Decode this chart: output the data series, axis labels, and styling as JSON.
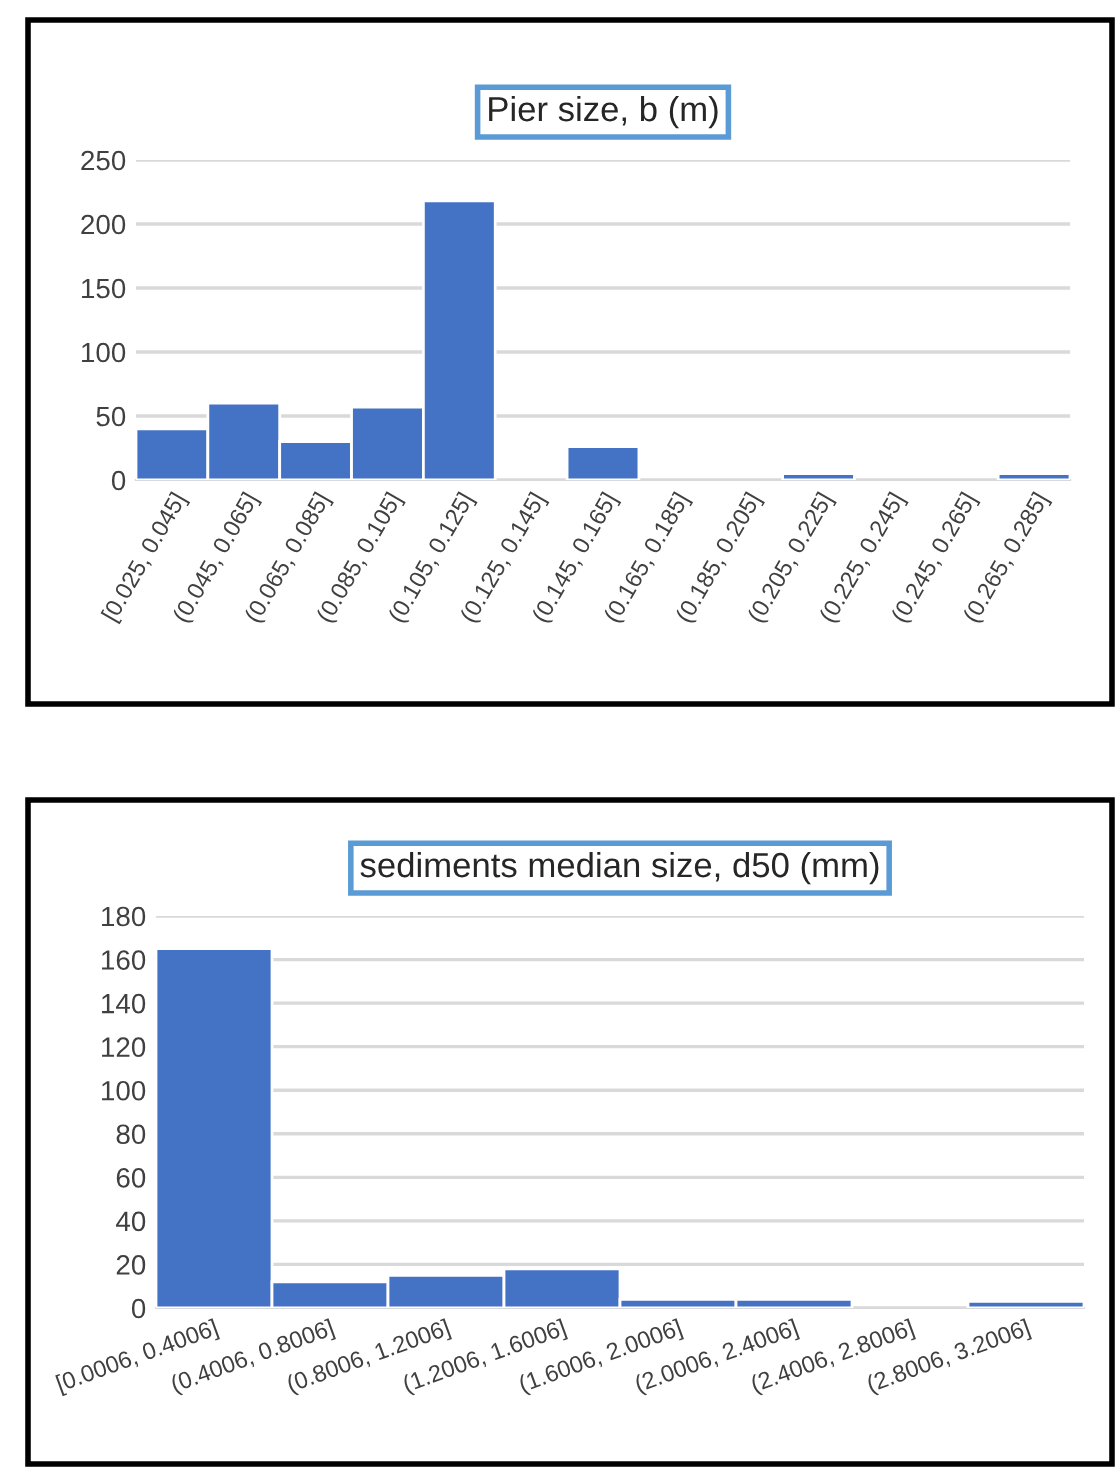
{
  "chart_data": [
    {
      "type": "bar",
      "title": "Pier size, b (m)",
      "categories": [
        "[0.025, 0.045]",
        "(0.045, 0.065]",
        "(0.065, 0.085]",
        "(0.085, 0.105]",
        "(0.105, 0.125]",
        "(0.125, 0.145]",
        "(0.145, 0.165]",
        "(0.165, 0.185]",
        "(0.185, 0.205]",
        "(0.205, 0.225]",
        "(0.225, 0.245]",
        "(0.245, 0.265]",
        "(0.265, 0.285]"
      ],
      "values": [
        40,
        60,
        30,
        57,
        218,
        0,
        26,
        0,
        0,
        5,
        0,
        0,
        5
      ],
      "color": "#4472c4",
      "ylim": [
        0,
        250
      ],
      "yticks": [
        0,
        50,
        100,
        150,
        200,
        250
      ],
      "grid": "y"
    },
    {
      "type": "bar",
      "title": "sediments median size, d50 (mm)",
      "categories": [
        "[0.0006, 0.4006]",
        "(0.4006, 0.8006]",
        "(0.8006, 1.2006]",
        "(1.2006, 1.6006]",
        "(1.6006, 2.0006]",
        "(2.0006, 2.4006]",
        "(2.4006, 2.8006]",
        "(2.8006, 3.2006]"
      ],
      "values": [
        165,
        12,
        15,
        18,
        4,
        4,
        0,
        3
      ],
      "color": "#4472c4",
      "ylim": [
        0,
        180
      ],
      "yticks": [
        0,
        20,
        40,
        60,
        80,
        100,
        120,
        140,
        160,
        180
      ],
      "grid": "y"
    }
  ]
}
